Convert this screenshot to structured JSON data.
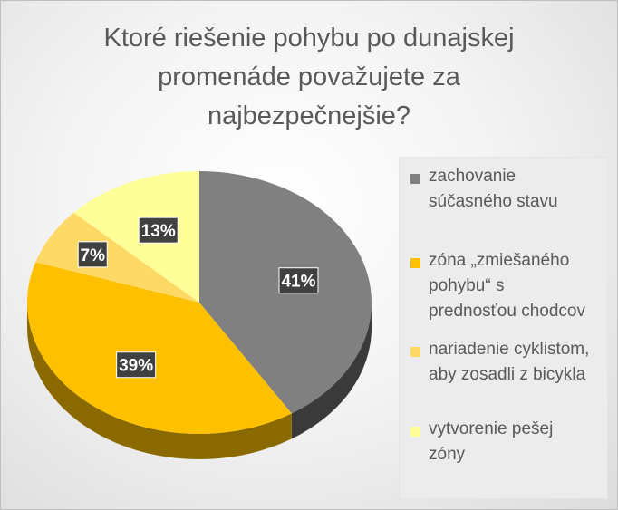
{
  "chart_data": {
    "type": "pie",
    "title_lines": [
      "Ktoré riešenie pohybu po dunajskej",
      "promenáde považujete za",
      "najbezpečnejšie?"
    ],
    "slices": [
      {
        "label": "zachovanie súčasného stavu",
        "legend_lines": [
          "zachovanie",
          "súčasného stavu"
        ],
        "value": 41,
        "data_label": "41%",
        "color": "#808080",
        "side_color": "#3a3a3a"
      },
      {
        "label": "zóna „zmiešaného pohybu“ s prednosťou chodcov",
        "legend_lines": [
          "zóna „zmiešaného",
          "pohybu“ s",
          "prednosťou chodcov"
        ],
        "value": 39,
        "data_label": "39%",
        "color": "#ffc000",
        "side_color": "#8a6a00"
      },
      {
        "label": "nariadenie cyklistom, aby zosadli z bicykla",
        "legend_lines": [
          "nariadenie cyklistom,",
          "aby zosadli z bicykla"
        ],
        "value": 7,
        "data_label": "7%",
        "color": "#ffd966",
        "side_color": "#9a8230"
      },
      {
        "label": "vytvorenie pešej zóny",
        "legend_lines": [
          "vytvorenie pešej",
          "zóny"
        ],
        "value": 13,
        "data_label": "13%",
        "color": "#ffff99",
        "side_color": "#a0a050"
      }
    ],
    "legend_position": "right",
    "three_d": true
  }
}
